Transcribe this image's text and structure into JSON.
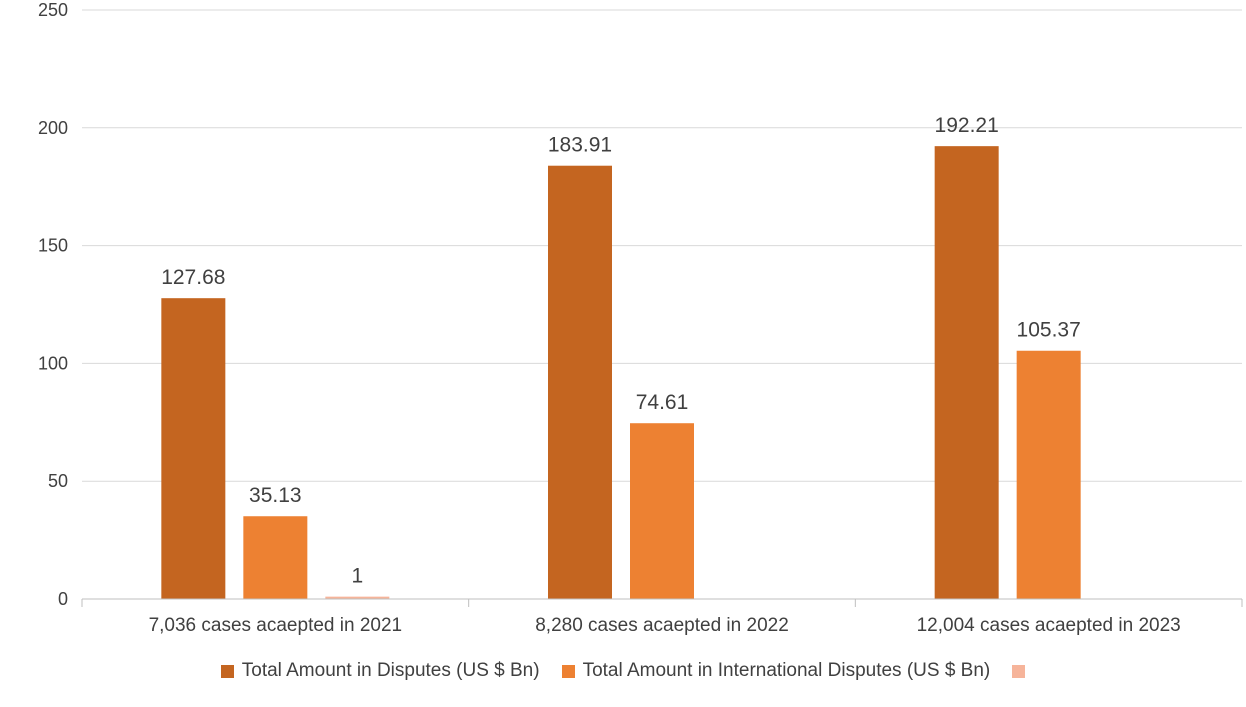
{
  "chart_data": {
    "type": "bar",
    "title": "",
    "xlabel": "",
    "ylabel": "",
    "ylim": [
      0,
      250
    ],
    "yticks": [
      0,
      50,
      100,
      150,
      200,
      250
    ],
    "grid": true,
    "legend_position": "bottom",
    "categories": [
      "7,036 cases acaepted in 2021",
      "8,280 cases acaepted in 2022",
      "12,004 cases acaepted in 2023"
    ],
    "series": [
      {
        "name": "Total Amount in Disputes (US $ Bn)",
        "color": "#C46520",
        "values": [
          127.68,
          183.91,
          192.21
        ],
        "labels": [
          "127.68",
          "183.91",
          "192.21"
        ]
      },
      {
        "name": "Total Amount in International Disputes (US $ Bn)",
        "color": "#ED8132",
        "values": [
          35.13,
          74.61,
          105.37
        ],
        "labels": [
          "35.13",
          "74.61",
          "105.37"
        ]
      },
      {
        "name": "",
        "color": "#F6B49A",
        "values": [
          1,
          null,
          null
        ],
        "labels": [
          "1",
          null,
          null
        ]
      }
    ]
  }
}
